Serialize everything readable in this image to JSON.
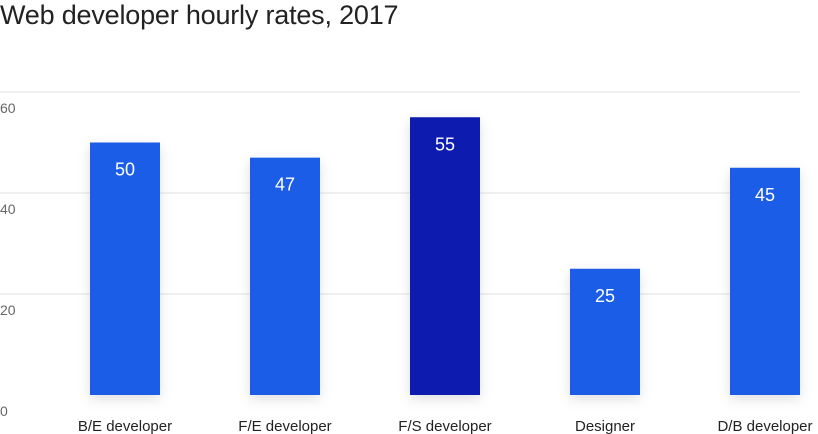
{
  "chart_data": {
    "type": "bar",
    "title": "Web developer hourly rates, 2017",
    "categories": [
      "B/E developer",
      "F/E developer",
      "F/S developer",
      "Designer",
      "D/B developer"
    ],
    "values": [
      50,
      47,
      55,
      25,
      45
    ],
    "ylim": [
      0,
      60
    ],
    "yticks": [
      0,
      20,
      40,
      60
    ],
    "grid": true,
    "xlabel": "",
    "ylabel": "",
    "colors": {
      "default": "#1f5de8",
      "highlight": "#0a1aae"
    },
    "highlight_category": "F/S developer"
  }
}
